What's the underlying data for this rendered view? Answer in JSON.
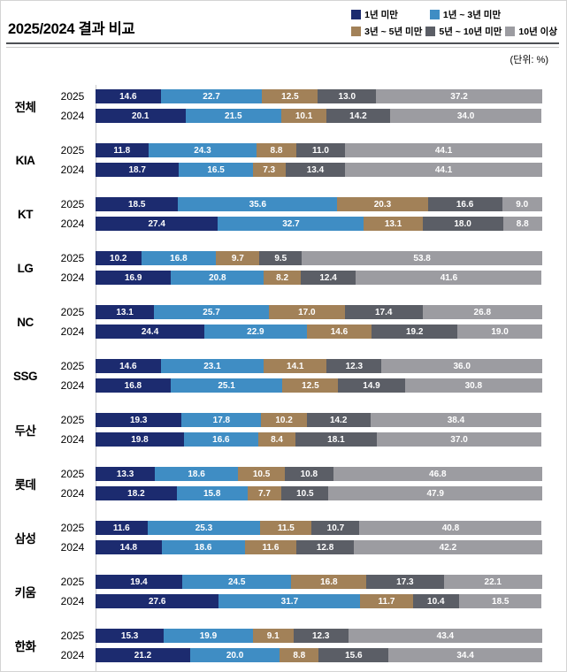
{
  "header": {
    "title": "2025/2024 결과 비교",
    "unit_label": "(단위: %)"
  },
  "chart_data": {
    "type": "bar",
    "orientation": "horizontal",
    "stacked": true,
    "unit": "%",
    "xlim": [
      0,
      100
    ],
    "legend_position": "top-right",
    "legend_items_first_row": 2,
    "row_labels": [
      "2025",
      "2024"
    ],
    "series": [
      {
        "label": "1년 미만",
        "color": "#1c2b6f"
      },
      {
        "label": "1년 ~ 3년 미만",
        "color": "#3f8dc4"
      },
      {
        "label": "3년 ~ 5년 미만",
        "color": "#a28158"
      },
      {
        "label": "5년 ~ 10년 미만",
        "color": "#5b5e66"
      },
      {
        "label": "10년 이상",
        "color": "#9c9ca1"
      }
    ],
    "groups": [
      {
        "name": "전체",
        "bars": [
          {
            "label": "2025",
            "values": [
              14.6,
              22.7,
              12.5,
              13.0,
              37.2
            ]
          },
          {
            "label": "2024",
            "values": [
              20.1,
              21.5,
              10.1,
              14.2,
              34.0
            ]
          }
        ]
      },
      {
        "name": "KIA",
        "bars": [
          {
            "label": "2025",
            "values": [
              11.8,
              24.3,
              8.8,
              11.0,
              44.1
            ]
          },
          {
            "label": "2024",
            "values": [
              18.7,
              16.5,
              7.3,
              13.4,
              44.1
            ]
          }
        ]
      },
      {
        "name": "KT",
        "bars": [
          {
            "label": "2025",
            "values": [
              18.5,
              35.6,
              20.3,
              16.6,
              9.0
            ]
          },
          {
            "label": "2024",
            "values": [
              27.4,
              32.7,
              13.1,
              18.0,
              8.8
            ]
          }
        ]
      },
      {
        "name": "LG",
        "bars": [
          {
            "label": "2025",
            "values": [
              10.2,
              16.8,
              9.7,
              9.5,
              53.8
            ]
          },
          {
            "label": "2024",
            "values": [
              16.9,
              20.8,
              8.2,
              12.4,
              41.6
            ]
          }
        ]
      },
      {
        "name": "NC",
        "bars": [
          {
            "label": "2025",
            "values": [
              13.1,
              25.7,
              17.0,
              17.4,
              26.8
            ]
          },
          {
            "label": "2024",
            "values": [
              24.4,
              22.9,
              14.6,
              19.2,
              19.0
            ]
          }
        ]
      },
      {
        "name": "SSG",
        "bars": [
          {
            "label": "2025",
            "values": [
              14.6,
              23.1,
              14.1,
              12.3,
              36.0
            ]
          },
          {
            "label": "2024",
            "values": [
              16.8,
              25.1,
              12.5,
              14.9,
              30.8
            ]
          }
        ]
      },
      {
        "name": "두산",
        "bars": [
          {
            "label": "2025",
            "values": [
              19.3,
              17.8,
              10.2,
              14.2,
              38.4
            ]
          },
          {
            "label": "2024",
            "values": [
              19.8,
              16.6,
              8.4,
              18.1,
              37.0
            ]
          }
        ]
      },
      {
        "name": "롯데",
        "bars": [
          {
            "label": "2025",
            "values": [
              13.3,
              18.6,
              10.5,
              10.8,
              46.8
            ]
          },
          {
            "label": "2024",
            "values": [
              18.2,
              15.8,
              7.7,
              10.5,
              47.9
            ]
          }
        ]
      },
      {
        "name": "삼성",
        "bars": [
          {
            "label": "2025",
            "values": [
              11.6,
              25.3,
              11.5,
              10.7,
              40.8
            ]
          },
          {
            "label": "2024",
            "values": [
              14.8,
              18.6,
              11.6,
              12.8,
              42.2
            ]
          }
        ]
      },
      {
        "name": "키움",
        "bars": [
          {
            "label": "2025",
            "values": [
              19.4,
              24.5,
              16.8,
              17.3,
              22.1
            ]
          },
          {
            "label": "2024",
            "values": [
              27.6,
              31.7,
              11.7,
              10.4,
              18.5
            ]
          }
        ]
      },
      {
        "name": "한화",
        "bars": [
          {
            "label": "2025",
            "values": [
              15.3,
              19.9,
              9.1,
              12.3,
              43.4
            ]
          },
          {
            "label": "2024",
            "values": [
              21.2,
              20.0,
              8.8,
              15.6,
              34.4
            ]
          }
        ]
      }
    ]
  }
}
